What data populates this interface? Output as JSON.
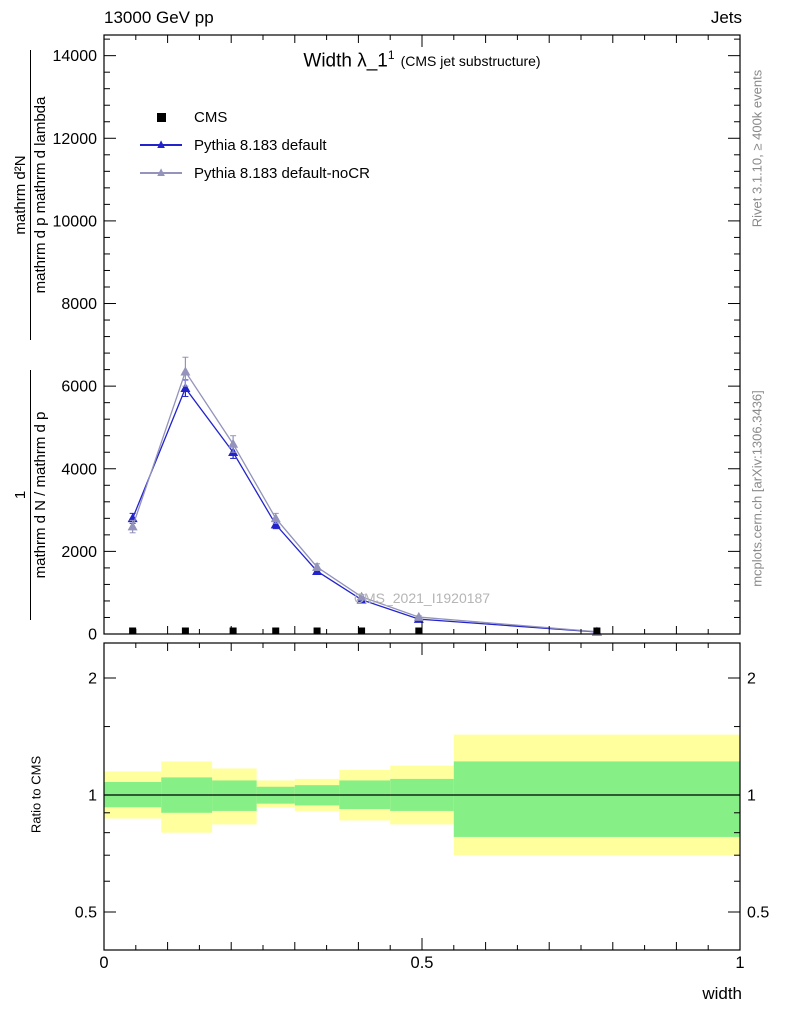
{
  "header": {
    "left": "13000 GeV pp",
    "right": "Jets"
  },
  "plot": {
    "title": "Width λ_1",
    "title_sup": "1",
    "title_note": "(CMS jet substructure)",
    "watermark": "CMS_2021_I1920187",
    "x_title": "width",
    "y_title": {
      "pre_num": "1",
      "pre_den": "mathrm d N / mathrm d p",
      "num": "mathrm d²N",
      "den": "mathrm d p mathrm d lambda"
    }
  },
  "legend": {
    "items": [
      {
        "label": "CMS",
        "marker": "square",
        "color": "#000000"
      },
      {
        "label": "Pythia 8.183 default",
        "marker": "triangle",
        "color": "#2323cc"
      },
      {
        "label": "Pythia 8.183 default-noCR",
        "marker": "triangle",
        "color": "#9393bb"
      }
    ]
  },
  "side": {
    "rivet": "Rivet 3.1.10, ≥ 400k events",
    "mcplots": "mcplots.cern.ch [arXiv:1306.3436]"
  },
  "chart_data": {
    "type": "line",
    "title": "Width λ_1^1 (CMS jet substructure)",
    "xlabel": "width",
    "x_range": [
      0,
      1
    ],
    "x_ticks": [
      0,
      0.5,
      1
    ],
    "y_range": [
      0,
      14500
    ],
    "y_ticks": [
      0,
      2000,
      4000,
      6000,
      8000,
      10000,
      12000,
      14000
    ],
    "x": [
      0.045,
      0.128,
      0.203,
      0.27,
      0.335,
      0.405,
      0.495,
      0.775
    ],
    "series": [
      {
        "name": "Pythia 8.183 default",
        "color": "#2323cc",
        "marker": "triangle",
        "values": [
          2800,
          5950,
          4400,
          2650,
          1520,
          830,
          360,
          50
        ],
        "errors": [
          120,
          200,
          150,
          100,
          70,
          45,
          25,
          10
        ]
      },
      {
        "name": "Pythia 8.183 default-noCR",
        "color": "#9393bb",
        "marker": "triangle",
        "values": [
          2600,
          6350,
          4600,
          2800,
          1620,
          900,
          410,
          55
        ],
        "errors": [
          150,
          350,
          200,
          120,
          80,
          50,
          30,
          10
        ]
      }
    ],
    "cms": {
      "name": "CMS",
      "color": "#000000",
      "marker": "square",
      "x": [
        0.045,
        0.128,
        0.203,
        0.27,
        0.335,
        0.405,
        0.495,
        0.775
      ],
      "values": [
        0,
        0,
        0,
        0,
        0,
        0,
        0,
        0
      ]
    },
    "ratio": {
      "ylabel": "Ratio to CMS",
      "ylim": [
        0.4,
        2.46
      ],
      "yscale": "log",
      "yticks": [
        0.5,
        1,
        2
      ],
      "unity_line": 1.0,
      "colors": {
        "yellow": "#ffff9e",
        "green": "#86ef86"
      },
      "bins": [
        {
          "x0": 0.0,
          "x1": 0.09,
          "yellow": [
            0.87,
            1.15
          ],
          "green": [
            0.93,
            1.08
          ]
        },
        {
          "x0": 0.09,
          "x1": 0.17,
          "yellow": [
            0.8,
            1.22
          ],
          "green": [
            0.9,
            1.11
          ]
        },
        {
          "x0": 0.17,
          "x1": 0.24,
          "yellow": [
            0.84,
            1.17
          ],
          "green": [
            0.91,
            1.09
          ]
        },
        {
          "x0": 0.24,
          "x1": 0.3,
          "yellow": [
            0.93,
            1.09
          ],
          "green": [
            0.95,
            1.05
          ]
        },
        {
          "x0": 0.3,
          "x1": 0.37,
          "yellow": [
            0.91,
            1.1
          ],
          "green": [
            0.94,
            1.06
          ]
        },
        {
          "x0": 0.37,
          "x1": 0.45,
          "yellow": [
            0.86,
            1.16
          ],
          "green": [
            0.92,
            1.09
          ]
        },
        {
          "x0": 0.45,
          "x1": 0.55,
          "yellow": [
            0.84,
            1.19
          ],
          "green": [
            0.91,
            1.1
          ]
        },
        {
          "x0": 0.55,
          "x1": 1.0,
          "yellow": [
            0.7,
            1.43
          ],
          "green": [
            0.78,
            1.22
          ]
        }
      ]
    }
  }
}
